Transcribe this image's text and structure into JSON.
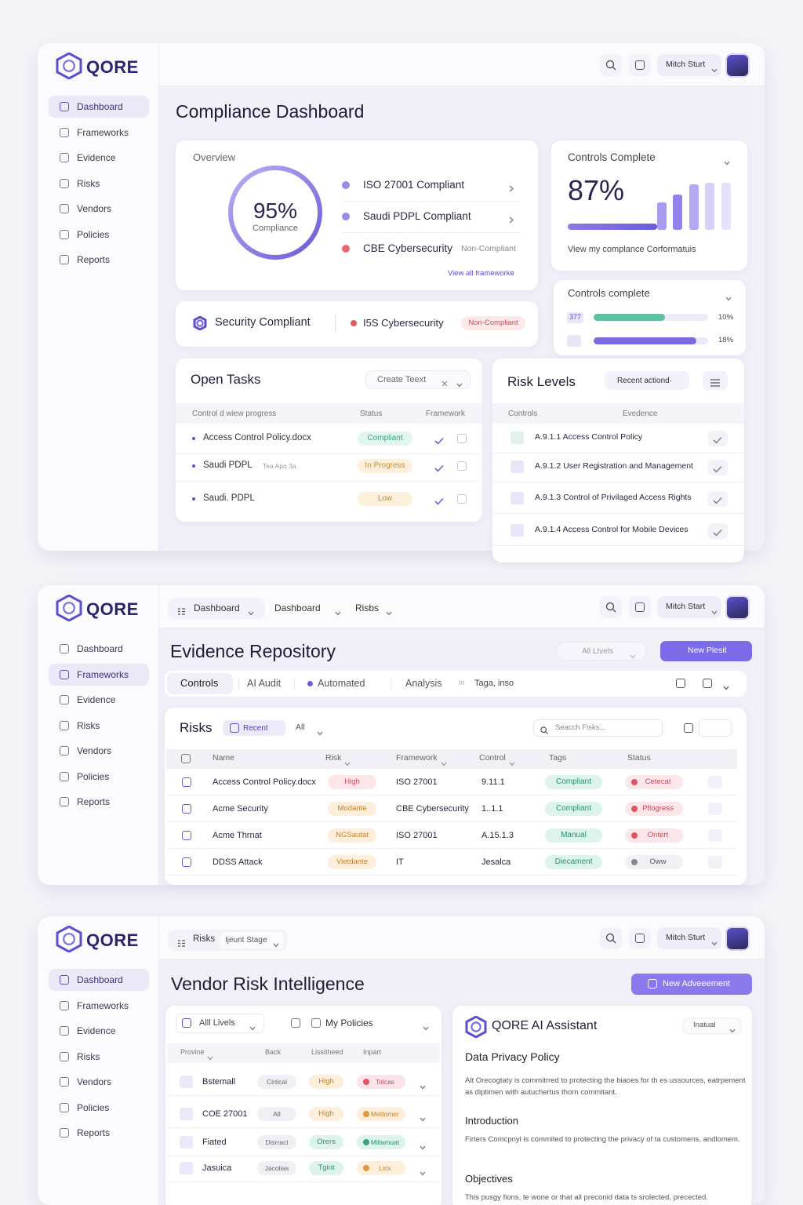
{
  "brand": "QORE",
  "nav": [
    "Dashboard",
    "Frameworks",
    "Evidence",
    "Risks",
    "Vendors",
    "Policies",
    "Reports"
  ],
  "screens": [
    {
      "user": "Mitch Sturt",
      "title": "Compliance Dashboard",
      "overview": {
        "title": "Overview",
        "percent": "95%",
        "caption": "Compliance",
        "items": [
          "ISO 27001 Compliant",
          "Saudi PDPL Compliant",
          "CBE Cybersecurity"
        ],
        "item_status": "Non-Compliant",
        "link": "View all frameworke"
      },
      "controls_complete": {
        "title": "Controls Complete",
        "value": "87%",
        "caption": "View my complance Corformatuis"
      },
      "controls_progress": {
        "title": "Controls complete",
        "tag": "377",
        "rows": [
          "10%",
          "18%"
        ]
      },
      "security": {
        "title": "Security Compliant",
        "framework": "I5S Cybersecurity",
        "status": "Non-Compliant"
      },
      "open_tasks": {
        "title": "Open Tasks",
        "button": "Create Teext",
        "headers": [
          "Control d wiew progress",
          "Status",
          "Framework"
        ],
        "rows": [
          {
            "name": "Access Control Policy.docx",
            "status": "Compliant"
          },
          {
            "name": "Saudi PDPL",
            "note": "Tea Apo 3a",
            "status": "In Progress"
          },
          {
            "name": "Saudi. PDPL",
            "status": "Low"
          }
        ]
      },
      "risk_levels": {
        "title": "Risk Levels",
        "button": "Recent actiond·",
        "headers": [
          "Controls",
          "Evedence"
        ],
        "rows": [
          "A.9.1.1 Access Control Policy",
          "A.9.1.2 User Registration and Management",
          "A.9.1.3 Control of Privilaged Access Rights",
          "A.9.1.4 Access Control for Mobile Devices"
        ]
      }
    },
    {
      "user": "Mitch Start",
      "top_nav": [
        "Dashboard",
        "Dashboard",
        "Risbs"
      ],
      "title": "Evidence Repository",
      "filter": "All Ltvels",
      "button": "New Plesit",
      "tabs": [
        "Controls",
        "AI Audit",
        "Automated",
        "Analysis"
      ],
      "tab_note": "In",
      "tab_tags": "Taga, inso",
      "risks": {
        "title": "Risks",
        "sort": "Recent",
        "filter": "All",
        "search": "Seacch Fisks...",
        "headers": [
          "Name",
          "Risk",
          "Framework",
          "Control",
          "Tags",
          "Status"
        ],
        "rows": [
          [
            "Access Control Policy.docx",
            "High",
            "ISO 27001",
            "9.11.1",
            "Compliant",
            "Cetecat"
          ],
          [
            "Acme Security",
            "Modarite",
            "CBE Cybersecurity",
            "1..1.1",
            "Compliant",
            "Pflogress"
          ],
          [
            "Acme Thrnat",
            "NGSautat",
            "ISO 27001",
            "A.15.1.3",
            "Manual",
            "Ontert"
          ],
          [
            "DDSS Attack",
            "Vietdante",
            "IT",
            "Jesalca",
            "Diecament",
            "Oww"
          ]
        ]
      }
    },
    {
      "user": "Mitch Sturt",
      "top_nav": [
        "Risks"
      ],
      "stage": "Ijeunt Stage",
      "title": "Vendor Risk Intelligence",
      "button": "New Adveeement",
      "vendors": {
        "filter": "Alll Livels",
        "policies": "My Policies",
        "headers": [
          "Provine",
          "Back",
          "Lissitheed",
          "Inpart"
        ],
        "rows": [
          [
            "Bstemall",
            "Cirtical",
            "High",
            "Tolcas"
          ],
          [
            "COE 27001",
            "All",
            "High",
            "Mettomer"
          ],
          [
            "Fiated",
            "Disrract",
            "Orers",
            "Millamuat"
          ],
          [
            "Jasuica",
            "Jacolias",
            "Tgint",
            "Lirix"
          ]
        ]
      },
      "assistant": {
        "title": "QORE AI Assistant",
        "mode": "Inatual",
        "heading": "Data Privacy Policy",
        "intro": "Alt Orecogtaty is commitrred to protecting the biaoes for th es ussources, eatrpement as diptimen with autuchertus thorn commitant.",
        "sections": [
          {
            "heading": "Introduction",
            "text": "Firters Comcpnyl is commited to protecting the privacy of ta customens, andlomem."
          },
          {
            "heading": "Objectives",
            "text": "This pusgy fions, te wone or that all preconid data ts srolected, precected."
          }
        ]
      }
    }
  ]
}
